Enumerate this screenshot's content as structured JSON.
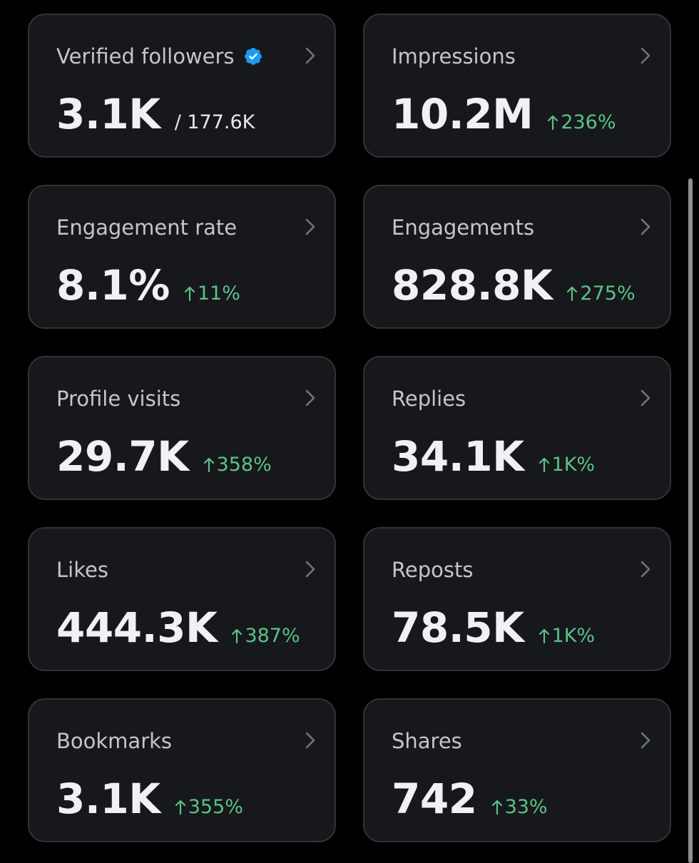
{
  "accent_color": "#5bc286",
  "verified_badge_color": "#1d9bf0",
  "cards": [
    {
      "title": "Verified followers",
      "value": "3.1K",
      "total": "/ 177.6K",
      "verified": true
    },
    {
      "title": "Impressions",
      "value": "10.2M",
      "change": "236%"
    },
    {
      "title": "Engagement rate",
      "value": "8.1%",
      "change": "11%"
    },
    {
      "title": "Engagements",
      "value": "828.8K",
      "change": "275%"
    },
    {
      "title": "Profile visits",
      "value": "29.7K",
      "change": "358%"
    },
    {
      "title": "Replies",
      "value": "34.1K",
      "change": "1K%"
    },
    {
      "title": "Likes",
      "value": "444.3K",
      "change": "387%"
    },
    {
      "title": "Reposts",
      "value": "78.5K",
      "change": "1K%"
    },
    {
      "title": "Bookmarks",
      "value": "3.1K",
      "change": "355%"
    },
    {
      "title": "Shares",
      "value": "742",
      "change": "33%"
    }
  ]
}
